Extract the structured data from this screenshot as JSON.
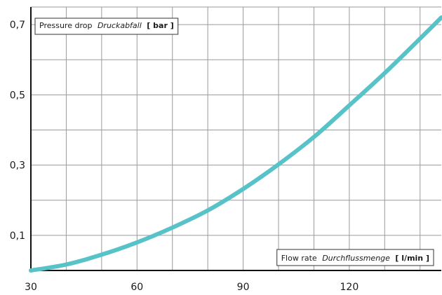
{
  "chart_data": {
    "type": "line",
    "title": "",
    "ylabel": {
      "text": "Pressure drop",
      "text_italic": "Druckabfall",
      "unit": "[ bar ]"
    },
    "xlabel": {
      "text": "Flow rate",
      "text_italic": "Durchflussmenge",
      "unit": "[ l/min ]"
    },
    "xlim": [
      30,
      146
    ],
    "ylim": [
      0,
      0.75
    ],
    "x_ticks": [
      {
        "value": 30,
        "label": "30"
      },
      {
        "value": 60,
        "label": "60"
      },
      {
        "value": 90,
        "label": "90"
      },
      {
        "value": 120,
        "label": "120"
      }
    ],
    "y_ticks": [
      {
        "value": 0.1,
        "label": "0,1"
      },
      {
        "value": 0.3,
        "label": "0,3"
      },
      {
        "value": 0.5,
        "label": "0,5"
      },
      {
        "value": 0.7,
        "label": "0,7"
      }
    ],
    "grid": true,
    "x_grid_step": 10,
    "y_grid_step": 0.1,
    "series": [
      {
        "color": "#57c3c8",
        "x": [
          30,
          40,
          50,
          60,
          70,
          80,
          90,
          100,
          110,
          120,
          130,
          140,
          146
        ],
        "y": [
          0.0,
          0.017,
          0.045,
          0.08,
          0.122,
          0.171,
          0.232,
          0.302,
          0.38,
          0.47,
          0.562,
          0.66,
          0.72
        ]
      }
    ]
  }
}
